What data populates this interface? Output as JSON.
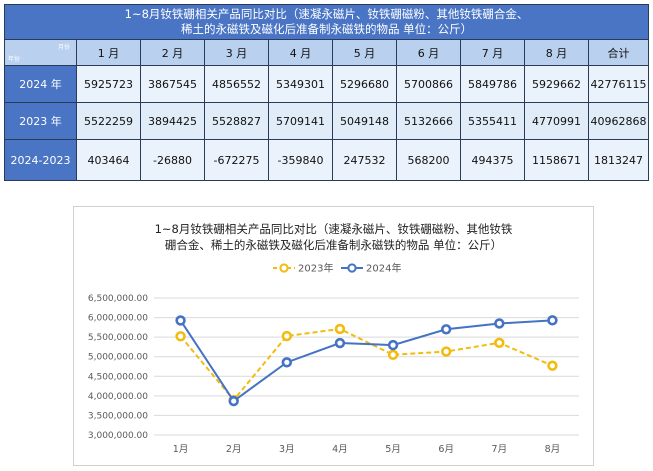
{
  "table": {
    "title_line1": "1~8月钕铁硼相关产品同比对比（速凝永磁片、钕铁硼磁粉、其他钕铁硼合金、",
    "title_line2": "稀土的永磁铁及磁化后准备制永磁铁的物品    单位：公斤）",
    "corner_top": "月份",
    "corner_bottom": "年份",
    "headers": [
      "1 月",
      "2 月",
      "3 月",
      "4 月",
      "5 月",
      "6 月",
      "7 月",
      "8 月",
      "合计"
    ],
    "rows": [
      {
        "label": "2024 年",
        "values": [
          "5925723",
          "3867545",
          "4856552",
          "5349301",
          "5296680",
          "5700866",
          "5849786",
          "5929662",
          "42776115"
        ]
      },
      {
        "label": "2023 年",
        "values": [
          "5522259",
          "3894425",
          "5528827",
          "5709141",
          "5049148",
          "5132666",
          "5355411",
          "4770991",
          "40962868"
        ]
      },
      {
        "label": "2024-2023",
        "values": [
          "403464",
          "-26880",
          "-672275",
          "-359840",
          "247532",
          "568200",
          "494375",
          "1158671",
          "1813247"
        ]
      }
    ]
  },
  "chart_data": {
    "type": "line",
    "title_line1": "1~8月钕铁硼相关产品同比对比（速凝永磁片、钕铁硼磁粉、其他钕铁",
    "title_line2": "硼合金、稀土的永磁铁及磁化后准备制永磁铁的物品  单位：公斤）",
    "categories": [
      "1月",
      "2月",
      "3月",
      "4月",
      "5月",
      "6月",
      "7月",
      "8月"
    ],
    "series": [
      {
        "name": "2023年",
        "color": "#f2bc0f",
        "dashed": true,
        "values": [
          5522259,
          3894425,
          5528827,
          5709141,
          5049148,
          5132666,
          5355411,
          4770991
        ]
      },
      {
        "name": "2024年",
        "color": "#4472c4",
        "dashed": false,
        "values": [
          5925723,
          3867545,
          4856552,
          5349301,
          5296680,
          5700866,
          5849786,
          5929662
        ]
      }
    ],
    "ylim": [
      3000000,
      6500000
    ],
    "yticks": [
      "3,000,000.00",
      "3,500,000.00",
      "4,000,000.00",
      "4,500,000.00",
      "5,000,000.00",
      "5,500,000.00",
      "6,000,000.00",
      "6,500,000.00"
    ],
    "grid": true,
    "legend_position": "top"
  }
}
